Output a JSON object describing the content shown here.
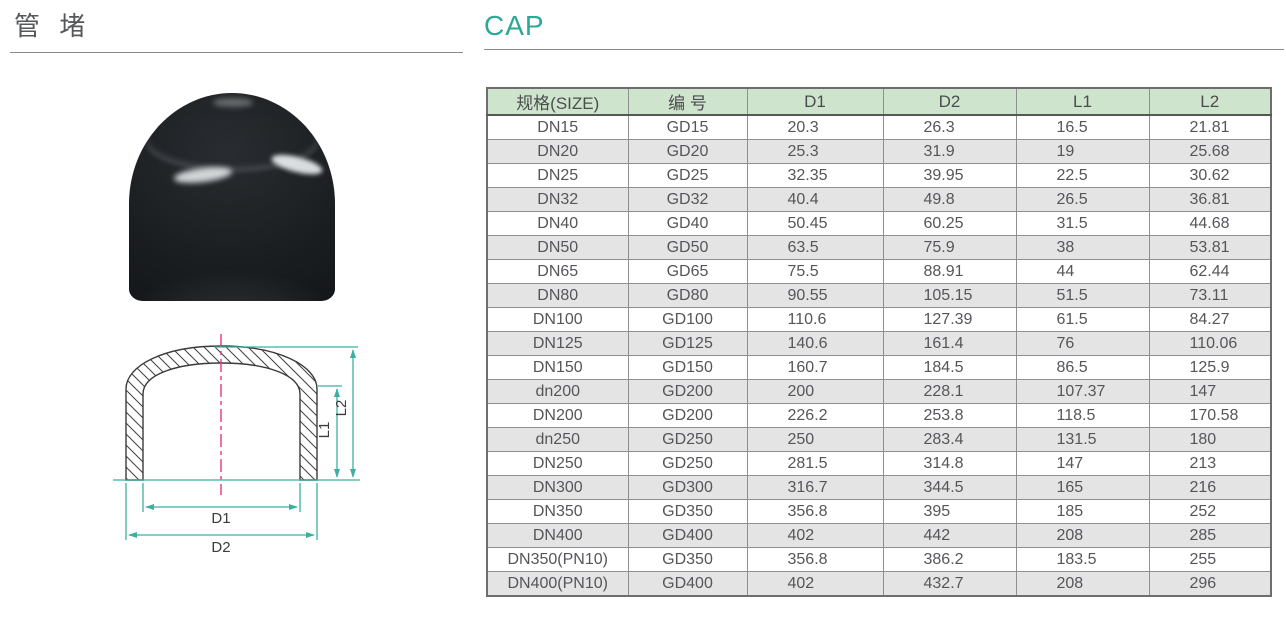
{
  "page": {
    "title_cn": "管 堵",
    "title_en": "CAP"
  },
  "colors": {
    "accent_teal": "#2fa796",
    "table_header_bg": "#cfe4cc",
    "row_alt_bg": "#e4e4e4",
    "dimension_line_teal": "#3cb0a0",
    "centerline_pink": "#e8357f",
    "rule_gray": "#8a8a8a"
  },
  "diagram": {
    "labels": {
      "d1": "D1",
      "d2": "D2",
      "l1": "L1",
      "l2": "L2"
    }
  },
  "table": {
    "headers": [
      "规格(SIZE)",
      "编 号",
      "D1",
      "D2",
      "L1",
      "L2"
    ],
    "rows": [
      [
        "DN15",
        "GD15",
        "20.3",
        "26.3",
        "16.5",
        "21.81"
      ],
      [
        "DN20",
        "GD20",
        "25.3",
        "31.9",
        "19",
        "25.68"
      ],
      [
        "DN25",
        "GD25",
        "32.35",
        "39.95",
        "22.5",
        "30.62"
      ],
      [
        "DN32",
        "GD32",
        "40.4",
        "49.8",
        "26.5",
        "36.81"
      ],
      [
        "DN40",
        "GD40",
        "50.45",
        "60.25",
        "31.5",
        "44.68"
      ],
      [
        "DN50",
        "GD50",
        "63.5",
        "75.9",
        "38",
        "53.81"
      ],
      [
        "DN65",
        "GD65",
        "75.5",
        "88.91",
        "44",
        "62.44"
      ],
      [
        "DN80",
        "GD80",
        "90.55",
        "105.15",
        "51.5",
        "73.11"
      ],
      [
        "DN100",
        "GD100",
        "110.6",
        "127.39",
        "61.5",
        "84.27"
      ],
      [
        "DN125",
        "GD125",
        "140.6",
        "161.4",
        "76",
        "110.06"
      ],
      [
        "DN150",
        "GD150",
        "160.7",
        "184.5",
        "86.5",
        "125.9"
      ],
      [
        "dn200",
        "GD200",
        "200",
        "228.1",
        "107.37",
        "147"
      ],
      [
        "DN200",
        "GD200",
        "226.2",
        "253.8",
        "118.5",
        "170.58"
      ],
      [
        "dn250",
        "GD250",
        "250",
        "283.4",
        "131.5",
        "180"
      ],
      [
        "DN250",
        "GD250",
        "281.5",
        "314.8",
        "147",
        "213"
      ],
      [
        "DN300",
        "GD300",
        "316.7",
        "344.5",
        "165",
        "216"
      ],
      [
        "DN350",
        "GD350",
        "356.8",
        "395",
        "185",
        "252"
      ],
      [
        "DN400",
        "GD400",
        "402",
        "442",
        "208",
        "285"
      ],
      [
        "DN350(PN10)",
        "GD350",
        "356.8",
        "386.2",
        "183.5",
        "255"
      ],
      [
        "DN400(PN10)",
        "GD400",
        "402",
        "432.7",
        "208",
        "296"
      ]
    ]
  }
}
